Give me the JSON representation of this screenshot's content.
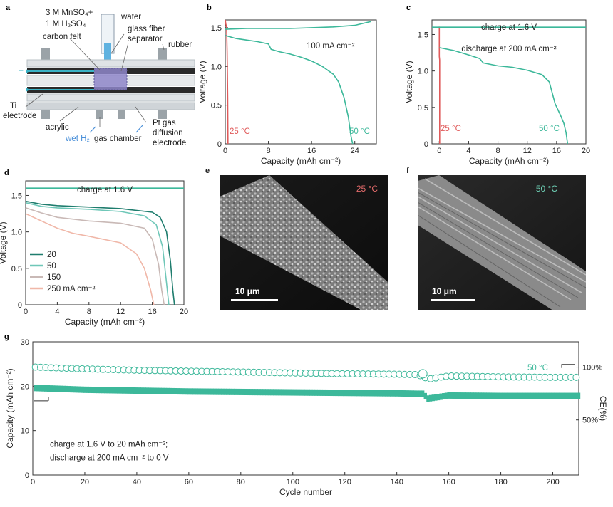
{
  "panels": {
    "a": {
      "letter": "a",
      "labels": {
        "electrolyte_line1": "3 M MnSO₄+",
        "electrolyte_line2": "1 M H₂SO₄",
        "water": "water",
        "carbon_felt": "carbon felt",
        "separator_line1": "glass fiber",
        "separator_line2": "separator",
        "rubber": "rubber",
        "ti_line1": "Ti",
        "ti_line2": "electrode",
        "acrylic": "acrylic",
        "wet_h2": "wet H₂",
        "gas_chamber": "gas chamber",
        "pt_line1": "Pt gas",
        "pt_line2": "diffusion",
        "pt_line3": "electrode",
        "plus": "+",
        "minus": "-"
      }
    },
    "b": {
      "letter": "b"
    },
    "c": {
      "letter": "c"
    },
    "d": {
      "letter": "d"
    },
    "e": {
      "letter": "e",
      "temp": "25 °C",
      "scale": "10 μm"
    },
    "f": {
      "letter": "f",
      "temp": "50 °C",
      "scale": "10 μm"
    },
    "g": {
      "letter": "g"
    }
  },
  "chart_data": [
    {
      "id": "b",
      "type": "line",
      "xlabel": "Capacity (mAh cm⁻²)",
      "ylabel": "Voltage (V)",
      "xlim": [
        0,
        28
      ],
      "ylim": [
        0,
        1.6
      ],
      "xticks": [
        0,
        8,
        16,
        24
      ],
      "yticks": [
        0,
        0.5,
        1.0,
        1.5
      ],
      "annotations": [
        "100 mA cm⁻²",
        "25 °C",
        "50 °C"
      ],
      "series": [
        {
          "name": "25 °C",
          "color": "#e05a5a",
          "x": [
            0,
            0.1,
            0.25,
            0.35,
            0.45,
            0.5
          ],
          "y": [
            1.6,
            1.55,
            1.5,
            1.2,
            0.6,
            0
          ]
        },
        {
          "name": "50 °C",
          "color": "#3cb89a",
          "x": [
            0,
            4,
            8,
            12,
            16,
            20,
            24,
            27
          ],
          "y": [
            1.48,
            1.49,
            1.49,
            1.49,
            1.5,
            1.51,
            1.53,
            1.58
          ]
        },
        {
          "name": "50 °C",
          "color": "#3cb89a",
          "x": [
            0,
            2,
            4,
            6,
            8,
            8.5,
            10,
            12,
            14,
            16,
            18,
            20,
            21,
            22,
            22.8,
            23.3,
            23.6
          ],
          "y": [
            1.4,
            1.36,
            1.34,
            1.32,
            1.29,
            1.22,
            1.19,
            1.16,
            1.12,
            1.07,
            1.0,
            0.9,
            0.8,
            0.6,
            0.35,
            0.1,
            0
          ]
        }
      ]
    },
    {
      "id": "c",
      "type": "line",
      "xlabel": "Capacity (mAh cm⁻²)",
      "ylabel": "Voltage (V)",
      "xlim": [
        -1,
        20
      ],
      "ylim": [
        0,
        1.7
      ],
      "xticks": [
        0,
        4,
        8,
        12,
        16,
        20
      ],
      "yticks": [
        0,
        0.5,
        1.0,
        1.5
      ],
      "annotations": [
        "charge at 1.6 V",
        "discharge at 200 mA cm⁻²",
        "25 °C",
        "50 °C"
      ],
      "series": [
        {
          "name": "25 °C",
          "color": "#e05a5a",
          "x": [
            -0.1,
            0,
            0,
            0.05,
            0.05
          ],
          "y": [
            1.6,
            1.6,
            1.2,
            1.15,
            0
          ]
        },
        {
          "name": "50 °C",
          "color": "#3cb89a",
          "x": [
            -1,
            20
          ],
          "y": [
            1.6,
            1.6
          ]
        },
        {
          "name": "50 °C",
          "color": "#3cb89a",
          "x": [
            0,
            2,
            4,
            5.5,
            6,
            8,
            10,
            12,
            14,
            15,
            15.8,
            16.5,
            17,
            17.3,
            17.5
          ],
          "y": [
            1.32,
            1.28,
            1.22,
            1.17,
            1.11,
            1.07,
            1.05,
            1.01,
            0.95,
            0.85,
            0.55,
            0.4,
            0.28,
            0.15,
            0
          ]
        }
      ]
    },
    {
      "id": "d",
      "type": "line",
      "xlabel": "Capacity (mAh cm⁻²)",
      "ylabel": "Voltage (V)",
      "xlim": [
        0,
        20
      ],
      "ylim": [
        0,
        1.7
      ],
      "xticks": [
        0,
        4,
        8,
        12,
        16,
        20
      ],
      "yticks": [
        0,
        0.5,
        1.0,
        1.5
      ],
      "annotations": [
        "charge at 1.6 V"
      ],
      "legend_title_suffix": "mA cm⁻²",
      "series": [
        {
          "name": "charge",
          "color": "#3cb89a",
          "x": [
            0,
            20
          ],
          "y": [
            1.6,
            1.6
          ]
        },
        {
          "name": "20",
          "color": "#1f7d6e",
          "x": [
            0,
            2,
            4,
            8,
            12,
            16,
            17,
            17.8,
            18.3,
            18.6,
            18.8
          ],
          "y": [
            1.42,
            1.38,
            1.36,
            1.34,
            1.32,
            1.27,
            1.2,
            1.0,
            0.6,
            0.2,
            0
          ]
        },
        {
          "name": "50",
          "color": "#6fc7b8",
          "x": [
            0,
            2,
            4,
            8,
            12,
            15,
            16.5,
            17.3,
            17.8,
            18.1
          ],
          "y": [
            1.4,
            1.35,
            1.33,
            1.31,
            1.28,
            1.22,
            1.1,
            0.8,
            0.3,
            0
          ]
        },
        {
          "name": "150",
          "color": "#c9b9b6",
          "x": [
            0,
            2,
            4,
            8,
            12,
            15,
            16,
            16.8,
            17.2,
            17.5
          ],
          "y": [
            1.33,
            1.26,
            1.2,
            1.15,
            1.12,
            1.05,
            0.9,
            0.55,
            0.2,
            0
          ]
        },
        {
          "name": "250 mA cm⁻²",
          "color": "#f0b7a8",
          "x": [
            0,
            2,
            4,
            6,
            8,
            12,
            14,
            15,
            15.8,
            16.2
          ],
          "y": [
            1.25,
            1.15,
            1.05,
            0.98,
            0.94,
            0.85,
            0.7,
            0.5,
            0.2,
            0
          ]
        }
      ]
    },
    {
      "id": "g",
      "type": "scatter",
      "xlabel": "Cycle number",
      "ylabel": "Capacity (mAh cm⁻²)",
      "y2label": "CE(%)",
      "xlim": [
        0,
        210
      ],
      "ylim": [
        0,
        30
      ],
      "xticks": [
        0,
        20,
        40,
        60,
        80,
        100,
        120,
        140,
        160,
        180,
        200
      ],
      "yticks": [
        0,
        10,
        20,
        30
      ],
      "y2ticks": [
        "100%",
        "50%"
      ],
      "annotations": [
        "50 °C",
        "charge at 1.6 V to 20 mAh cm⁻²;",
        "discharge at 200 mA cm⁻² to 0 V"
      ],
      "series": [
        {
          "name": "Capacity",
          "color": "#3cb89a",
          "x": [
            1,
            20,
            40,
            60,
            80,
            100,
            120,
            140,
            148,
            150,
            152,
            160,
            180,
            200,
            210
          ],
          "y": [
            19.6,
            19.2,
            19.0,
            18.8,
            18.7,
            18.6,
            18.5,
            18.4,
            18.3,
            18.3,
            17.2,
            17.9,
            17.8,
            17.8,
            17.8
          ]
        },
        {
          "name": "CE",
          "color": "#3cb89a",
          "x": [
            1,
            20,
            40,
            60,
            80,
            100,
            120,
            140,
            148,
            152,
            153,
            160,
            180,
            200,
            210
          ],
          "y": [
            24.3,
            23.9,
            23.6,
            23.4,
            23.2,
            23.0,
            22.8,
            22.7,
            22.6,
            21.7,
            21.7,
            22.3,
            22.1,
            22.0,
            22.0
          ]
        }
      ]
    }
  ]
}
